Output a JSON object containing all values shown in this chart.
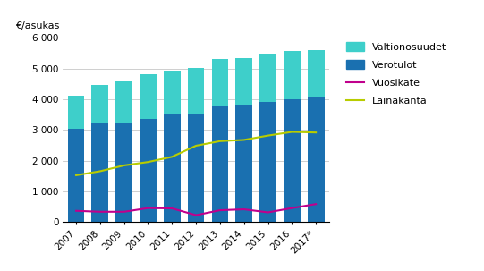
{
  "years": [
    "2007",
    "2008",
    "2009",
    "2010",
    "2011",
    "2012",
    "2013",
    "2014",
    "2015",
    "2016",
    "2017*"
  ],
  "verotulot": [
    3050,
    3250,
    3250,
    3370,
    3500,
    3520,
    3760,
    3840,
    3920,
    4000,
    4080
  ],
  "valtionosuudet": [
    1060,
    1230,
    1340,
    1440,
    1440,
    1510,
    1540,
    1510,
    1560,
    1580,
    1530
  ],
  "vuosikate": [
    370,
    340,
    340,
    460,
    450,
    230,
    390,
    420,
    320,
    460,
    590
  ],
  "lainakanta": [
    1530,
    1660,
    1850,
    1960,
    2130,
    2490,
    2640,
    2680,
    2820,
    2940,
    2920
  ],
  "bar_color_verotulot": "#1a70b0",
  "bar_color_valtionosuudet": "#3ecfca",
  "line_color_vuosikate": "#c0008c",
  "line_color_lainakanta": "#b8cc00",
  "ylim": [
    0,
    6000
  ],
  "yticks": [
    0,
    1000,
    2000,
    3000,
    4000,
    5000,
    6000
  ],
  "ytick_labels": [
    "0",
    "1 000",
    "2 000",
    "3 000",
    "4 000",
    "5 000",
    "6 000"
  ],
  "ylabel": "€/asukas",
  "legend_labels": [
    "Valtionosuudet",
    "Verotulot",
    "Vuosikate",
    "Lainakanta"
  ],
  "background_color": "#ffffff",
  "grid_color": "#c8c8c8"
}
